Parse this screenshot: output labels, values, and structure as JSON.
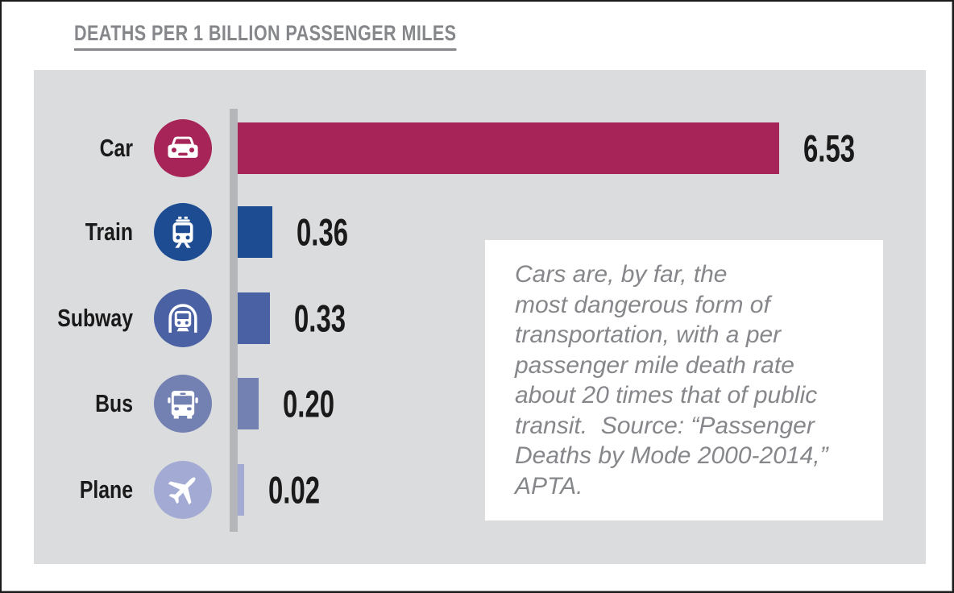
{
  "title": "DEATHS PER 1 BILLION PASSENGER MILES",
  "chart_data": {
    "type": "bar",
    "orientation": "horizontal",
    "title": "DEATHS PER 1 BILLION PASSENGER MILES",
    "categories": [
      "Car",
      "Train",
      "Subway",
      "Bus",
      "Plane"
    ],
    "values": [
      6.53,
      0.36,
      0.33,
      0.2,
      0.02
    ],
    "value_labels": [
      "6.53",
      "0.36",
      "0.33",
      "0.20",
      "0.02"
    ],
    "xlim": [
      0,
      6.53
    ],
    "grid": false,
    "legend": "none",
    "bar_colors": [
      "#a62457",
      "#1d4c92",
      "#4a61a3",
      "#7380b2",
      "#a3abd4"
    ],
    "annotation": "Cars are, by far, the\nmost dangerous form of\ntransportation, with a per\npassenger mile death rate\nabout 20 times that of public\ntransit.  Source: “Passenger\nDeaths by Mode 2000-2014,”\nAPTA."
  },
  "rows": [
    {
      "label": "Car",
      "value": 6.53,
      "value_label": "6.53",
      "color": "#a62457",
      "icon": "car-icon"
    },
    {
      "label": "Train",
      "value": 0.36,
      "value_label": "0.36",
      "color": "#1d4c92",
      "icon": "train-icon"
    },
    {
      "label": "Subway",
      "value": 0.33,
      "value_label": "0.33",
      "color": "#4a61a3",
      "icon": "subway-icon"
    },
    {
      "label": "Bus",
      "value": 0.2,
      "value_label": "0.20",
      "color": "#7380b2",
      "icon": "bus-icon"
    },
    {
      "label": "Plane",
      "value": 0.02,
      "value_label": "0.02",
      "color": "#a3abd4",
      "icon": "plane-icon"
    }
  ],
  "colors": {
    "page_bg": "#ffffff",
    "page_border": "#1a1a1a",
    "panel_bg": "#dbdcde",
    "axis_line": "#b5b6ba",
    "title_text": "#85878a",
    "label_text": "#1a1a1a",
    "annotation_bg": "#ffffff",
    "annotation_text": "#85878a"
  }
}
